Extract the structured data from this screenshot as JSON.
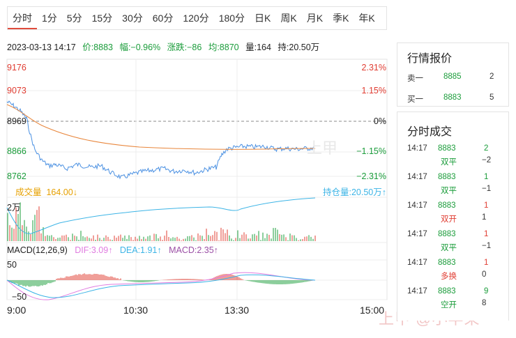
{
  "period_tabs": [
    "分时",
    "1分",
    "5分",
    "15分",
    "30分",
    "60分",
    "120分",
    "180分",
    "日K",
    "周K",
    "月K",
    "季K",
    "年K"
  ],
  "active_tab": "分时",
  "info": {
    "datetime": "2023-03-13 14:17",
    "price": "价:8883",
    "amplitude": "幅:−0.96%",
    "change": "涨跌:−86",
    "average": "均:8870",
    "volume": "量:164",
    "open_interest": "持:20.50万"
  },
  "price_axis": {
    "left": [
      "9176",
      "9073",
      "8969",
      "8866",
      "8762"
    ],
    "right": [
      "2.31%",
      "1.15%",
      "0%",
      "−1.15%",
      "−2.31%"
    ]
  },
  "volume_panel": {
    "label": "成交量",
    "value": "164.00",
    "arrow": "↓",
    "right_label": "持仓量:20.50万",
    "right_arrow": "↑",
    "scale": "2万"
  },
  "macd_panel": {
    "label": "MACD(12,26,9)",
    "dif": "DIF:3.09",
    "dif_arrow": "↑",
    "dea": "DEA:1.91",
    "dea_arrow": "↑",
    "macd": "MACD:2.35",
    "macd_arrow": "↑",
    "axis_top": "50",
    "axis_bottom": "−50"
  },
  "time_axis": [
    "9:00",
    "10:30",
    "13:30",
    "15:00"
  ],
  "quote_panel": {
    "title": "行情报价",
    "rows": [
      {
        "label": "卖一",
        "price": "8885",
        "qty": "2"
      },
      {
        "label": "买一",
        "price": "8883",
        "qty": "5"
      }
    ]
  },
  "trades_panel": {
    "title": "分时成交",
    "rows": [
      {
        "time": "14:17",
        "price": "8883",
        "qty": "2",
        "type": "双平",
        "delta": "−2",
        "qty_color": "green"
      },
      {
        "time": "14:17",
        "price": "8883",
        "qty": "1",
        "type": "双平",
        "delta": "−1",
        "qty_color": "green"
      },
      {
        "time": "14:17",
        "price": "8883",
        "qty": "1",
        "type": "双开",
        "delta": "1",
        "qty_color": "red"
      },
      {
        "time": "14:17",
        "price": "8883",
        "qty": "1",
        "type": "双平",
        "delta": "−1",
        "qty_color": "red"
      },
      {
        "time": "14:17",
        "price": "8883",
        "qty": "1",
        "type": "多换",
        "delta": "0",
        "qty_color": "red"
      },
      {
        "time": "14:17",
        "price": "8883",
        "qty": "9",
        "type": "空开",
        "delta": "8",
        "qty_color": "green"
      }
    ]
  },
  "watermark_center": "上甲",
  "watermark_corner": "上甲 @小苹果",
  "colors": {
    "up": "#e03c31",
    "down": "#1a9c3a",
    "price_line": "#4a90e2",
    "avg_line": "#e8853a",
    "volume_label": "#e6a000",
    "oi_line": "#3cb4e6",
    "dif": "#e07be0",
    "dea": "#3cb4e6",
    "macd": "#9b4fa5"
  }
}
